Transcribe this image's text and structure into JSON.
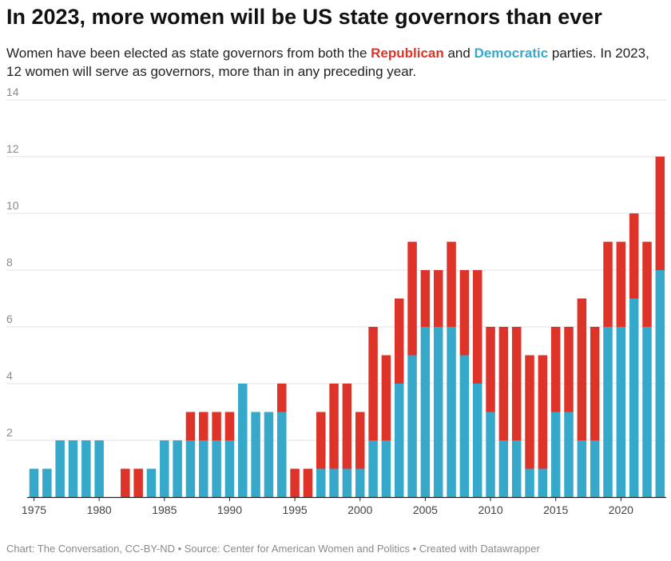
{
  "header": {
    "title": "In 2023, more women will be US state governors than ever",
    "subtitle_part1": "Women have been elected as state governors from both the ",
    "republican_label": "Republican",
    "subtitle_part2": " and ",
    "democratic_label": "Democratic",
    "subtitle_part3": " parties. In 2023, 12 women will serve as governors, more than in any preceding year."
  },
  "footer": {
    "credit": "Chart: The Conversation, CC-BY-ND • Source: Center for American Women and Politics • Created with Datawrapper"
  },
  "colors": {
    "republican": "#dd3328",
    "democratic": "#36a9cb",
    "grid": "#e2e2e2",
    "axis": "#222222",
    "tick_label": "#8a8a8a"
  },
  "chart_data": {
    "type": "bar",
    "stacked": true,
    "title": "In 2023, more women will be US state governors than ever",
    "xlabel": "",
    "ylabel": "",
    "ylim": [
      0,
      14
    ],
    "yticks": [
      2,
      4,
      6,
      8,
      10,
      12,
      14
    ],
    "xticks": [
      1975,
      1980,
      1985,
      1990,
      1995,
      2000,
      2005,
      2010,
      2015,
      2020
    ],
    "grid": true,
    "categories": [
      1975,
      1976,
      1977,
      1978,
      1979,
      1980,
      1981,
      1982,
      1983,
      1984,
      1985,
      1986,
      1987,
      1988,
      1989,
      1990,
      1991,
      1992,
      1993,
      1994,
      1995,
      1996,
      1997,
      1998,
      1999,
      2000,
      2001,
      2002,
      2003,
      2004,
      2005,
      2006,
      2007,
      2008,
      2009,
      2010,
      2011,
      2012,
      2013,
      2014,
      2015,
      2016,
      2017,
      2018,
      2019,
      2020,
      2021,
      2022,
      2023
    ],
    "series": [
      {
        "name": "Democratic",
        "color": "#36a9cb",
        "values": [
          1,
          1,
          2,
          2,
          2,
          2,
          0,
          0,
          0,
          1,
          2,
          2,
          2,
          2,
          2,
          2,
          4,
          3,
          3,
          3,
          0,
          0,
          1,
          1,
          1,
          1,
          2,
          2,
          4,
          5,
          6,
          6,
          6,
          5,
          4,
          3,
          2,
          2,
          1,
          1,
          3,
          3,
          2,
          2,
          6,
          6,
          7,
          6,
          8
        ]
      },
      {
        "name": "Republican",
        "color": "#dd3328",
        "values": [
          0,
          0,
          0,
          0,
          0,
          0,
          0,
          1,
          1,
          0,
          0,
          0,
          1,
          1,
          1,
          1,
          0,
          0,
          0,
          1,
          1,
          1,
          2,
          3,
          3,
          2,
          4,
          3,
          3,
          4,
          2,
          2,
          3,
          3,
          4,
          3,
          4,
          4,
          4,
          4,
          3,
          3,
          5,
          4,
          3,
          3,
          3,
          3,
          4
        ]
      }
    ]
  }
}
